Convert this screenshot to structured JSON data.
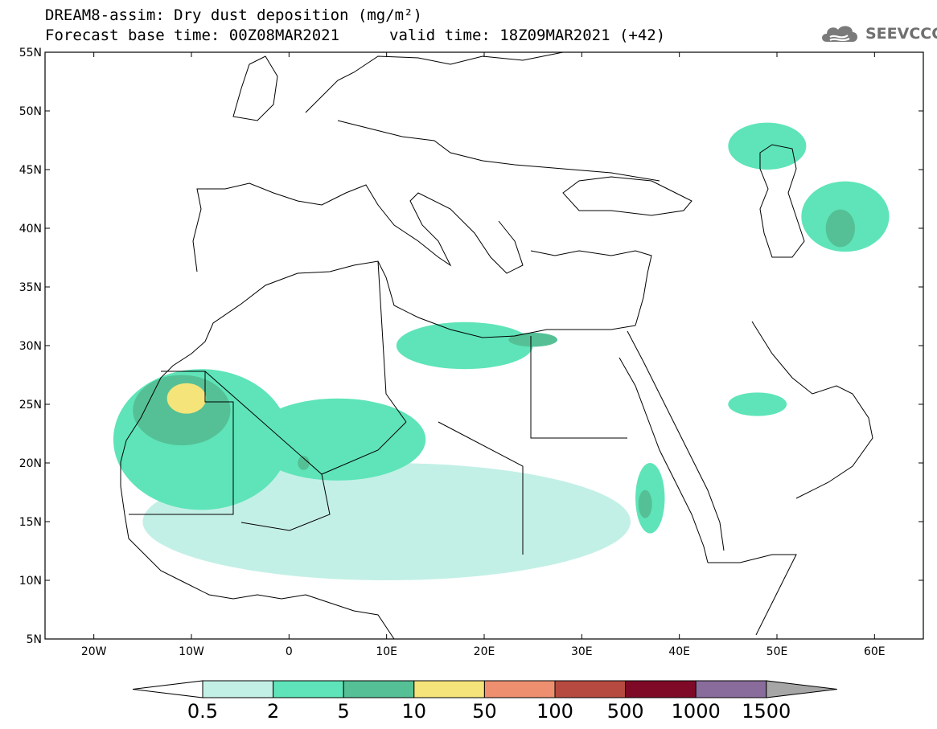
{
  "header": {
    "title": "DREAM8-assim: Dry dust deposition (mg/m²)",
    "base_time": "Forecast base time: 00Z08MAR2021",
    "valid_time": "valid time: 18Z09MAR2021 (+42)",
    "logo_text": "SEEVCCC"
  },
  "axes": {
    "lat_labels": [
      "55N",
      "50N",
      "45N",
      "40N",
      "35N",
      "30N",
      "25N",
      "20N",
      "15N",
      "10N",
      "5N"
    ],
    "lat_values": [
      55,
      50,
      45,
      40,
      35,
      30,
      25,
      20,
      15,
      10,
      5
    ],
    "lon_labels": [
      "20W",
      "10W",
      "0",
      "10E",
      "20E",
      "30E",
      "40E",
      "50E",
      "60E"
    ],
    "lon_values": [
      -20,
      -10,
      0,
      10,
      20,
      30,
      40,
      50,
      60
    ],
    "lon_range": [
      -25,
      65
    ],
    "lat_range": [
      5,
      55
    ]
  },
  "legend": {
    "labels": [
      "0.5",
      "2",
      "5",
      "10",
      "50",
      "100",
      "500",
      "1000",
      "1500"
    ],
    "colors": [
      "#c3f0e6",
      "#5ee4b8",
      "#55c096",
      "#f4e47a",
      "#ee9070",
      "#b64a40",
      "#7e0a28",
      "#8a6c9c",
      "#a6a6a6"
    ],
    "under_color": "#ffffff",
    "over_color": "#a6a6a6"
  },
  "dust_regions": [
    {
      "name": "mauritania-west-sahara",
      "level": 2,
      "lon": -9,
      "lat": 22,
      "rx": 9,
      "ry": 6
    },
    {
      "name": "algeria-mali",
      "level": 2,
      "lon": 5,
      "lat": 22,
      "rx": 9,
      "ry": 3.5
    },
    {
      "name": "libya-egypt-coast",
      "level": 2,
      "lon": 18,
      "lat": 30,
      "rx": 7,
      "ry": 2
    },
    {
      "name": "sahel",
      "level": 1,
      "lon": 10,
      "lat": 15,
      "rx": 25,
      "ry": 5
    },
    {
      "name": "sudan-eritrea",
      "level": 2,
      "lon": 37,
      "lat": 17,
      "rx": 1.5,
      "ry": 3
    },
    {
      "name": "turkmenistan",
      "level": 2,
      "lon": 57,
      "lat": 41,
      "rx": 4.5,
      "ry": 3
    },
    {
      "name": "kazakhstan",
      "level": 2,
      "lon": 49,
      "lat": 47,
      "rx": 4,
      "ry": 2
    },
    {
      "name": "arabia-gulf",
      "level": 2,
      "lon": 48,
      "lat": 25,
      "rx": 3,
      "ry": 1
    },
    {
      "name": "western-sahara-core",
      "level": 3,
      "lon": -11,
      "lat": 24.5,
      "rx": 5,
      "ry": 3
    },
    {
      "name": "western-sahara-peak",
      "level": 4,
      "lon": -10.5,
      "lat": 25.5,
      "rx": 2,
      "ry": 1.3
    },
    {
      "name": "libya-peak",
      "level": 3,
      "lon": 25,
      "lat": 30.5,
      "rx": 2.5,
      "ry": 0.6
    },
    {
      "name": "mali-peak",
      "level": 3,
      "lon": 1.5,
      "lat": 20,
      "rx": 0.6,
      "ry": 0.6
    },
    {
      "name": "sudan-peak",
      "level": 3,
      "lon": 36.5,
      "lat": 16.5,
      "rx": 0.7,
      "ry": 1.2
    },
    {
      "name": "turkmen-peak",
      "level": 3,
      "lon": 56.5,
      "lat": 40,
      "rx": 1.5,
      "ry": 1.6
    }
  ]
}
